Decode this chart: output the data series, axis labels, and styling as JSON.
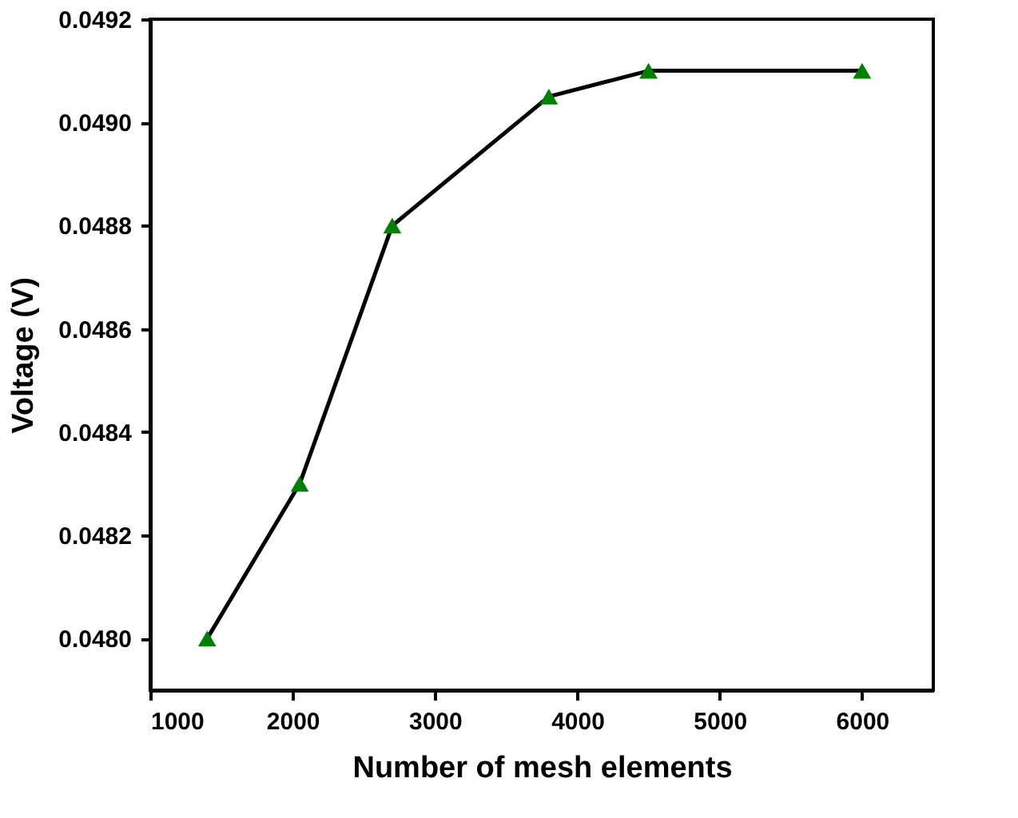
{
  "chart_data": {
    "type": "scatter",
    "xlabel": "Number of mesh elements",
    "ylabel": "Voltage (V)",
    "x": [
      1400,
      2050,
      2700,
      3800,
      4500,
      6000
    ],
    "series": [
      {
        "type": "line",
        "color": "#000000",
        "marker": "none",
        "values": [
          0.048,
          0.0483,
          0.0488,
          0.04905,
          0.0491,
          0.0491
        ]
      },
      {
        "color": "#008000",
        "values": [
          0.048,
          0.0483,
          0.0488,
          0.04905,
          0.0491,
          0.0491
        ]
      }
    ],
    "xlim": [
      1000,
      6500
    ],
    "xticks": [
      1000,
      2000,
      3000,
      4000,
      5000,
      6000
    ],
    "ylim": [
      0.0479,
      0.0492
    ],
    "yticks": [
      {
        "value": 0.048,
        "label": "0.0480"
      },
      {
        "value": 0.0482,
        "label": "0.0482"
      },
      {
        "value": 0.0484,
        "label": "0.0484"
      },
      {
        "value": 0.0486,
        "label": "0.0486"
      },
      {
        "value": 0.0488,
        "label": "0.0488"
      },
      {
        "value": 0.049,
        "label": "0.0490"
      },
      {
        "value": 0.0492,
        "label": "0.0492"
      }
    ],
    "marker": "triangle",
    "line_style": "solid",
    "grid": false,
    "legend": false
  }
}
